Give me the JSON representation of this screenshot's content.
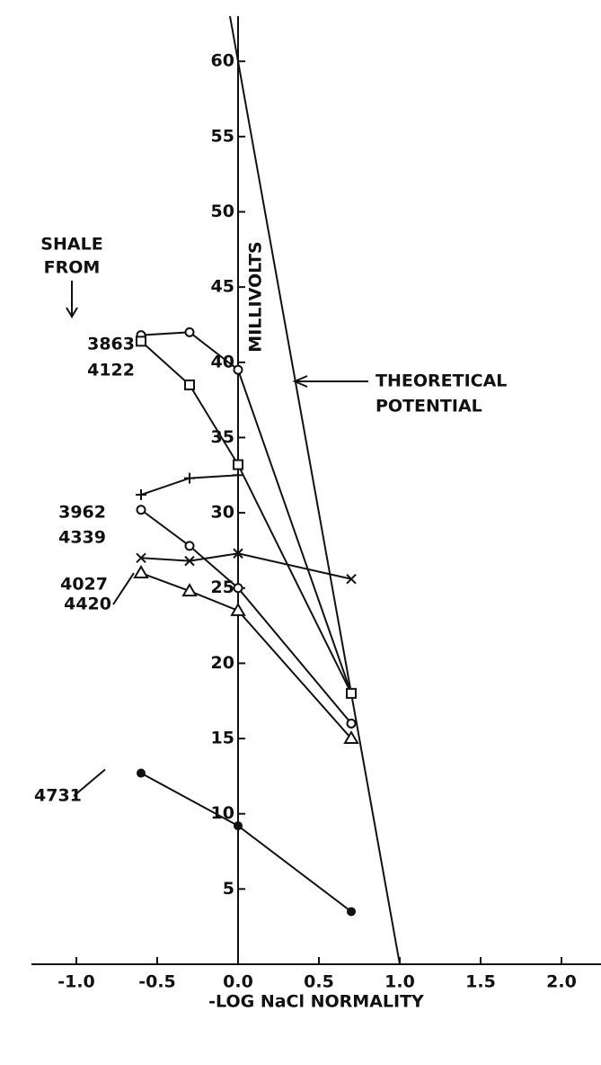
{
  "chart_data": {
    "type": "line",
    "xlabel": "-LOG NaCl NORMALITY",
    "ylabel": "MILLIVOLTS",
    "legend_title": [
      "SHALE",
      "FROM"
    ],
    "annotation": [
      "THEORETICAL",
      "POTENTIAL"
    ],
    "xlim": [
      -1.0,
      2.0
    ],
    "ylim": [
      0,
      63
    ],
    "xticks": [
      {
        "value": -1.0,
        "label": "-1.0"
      },
      {
        "value": -0.5,
        "label": "-0.5"
      },
      {
        "value": 0,
        "label": "0.0"
      },
      {
        "value": 0.5,
        "label": "0.5"
      },
      {
        "value": 1.0,
        "label": "1.0"
      },
      {
        "value": 1.5,
        "label": "1.5"
      },
      {
        "value": 2.0,
        "label": "2.0"
      }
    ],
    "yticks": [
      5,
      10,
      15,
      20,
      25,
      30,
      35,
      40,
      45,
      50,
      55,
      60
    ],
    "theoretical": {
      "x": [
        -0.05,
        1.0
      ],
      "values": [
        63,
        0
      ]
    },
    "series": [
      {
        "name": "3863",
        "marker": "circle",
        "x": [
          -0.6,
          -0.3,
          0,
          0.7
        ],
        "values": [
          41.8,
          42.0,
          39.5,
          18.0
        ]
      },
      {
        "name": "4122",
        "marker": "square",
        "x": [
          -0.6,
          -0.3,
          0,
          0.7
        ],
        "values": [
          41.4,
          38.5,
          33.2,
          18.0
        ]
      },
      {
        "name": "3962",
        "marker": "plus",
        "x": [
          -0.6,
          -0.3,
          0
        ],
        "values": [
          31.2,
          32.3,
          32.5
        ]
      },
      {
        "name": "4339",
        "marker": "circle",
        "x": [
          -0.6,
          -0.3,
          0,
          0.7
        ],
        "values": [
          30.2,
          27.8,
          25.0,
          16.0
        ]
      },
      {
        "name": "4027",
        "marker": "cross",
        "x": [
          -0.6,
          -0.3,
          0,
          0.7
        ],
        "values": [
          27.0,
          26.8,
          27.3,
          25.6
        ]
      },
      {
        "name": "4420",
        "marker": "triangle",
        "x": [
          -0.6,
          -0.3,
          0,
          0.7
        ],
        "values": [
          26.0,
          24.8,
          23.5,
          15.0
        ]
      },
      {
        "name": "4731",
        "marker": "dot",
        "x": [
          -0.6,
          0,
          0.7
        ],
        "values": [
          12.7,
          9.2,
          3.5
        ]
      }
    ]
  }
}
